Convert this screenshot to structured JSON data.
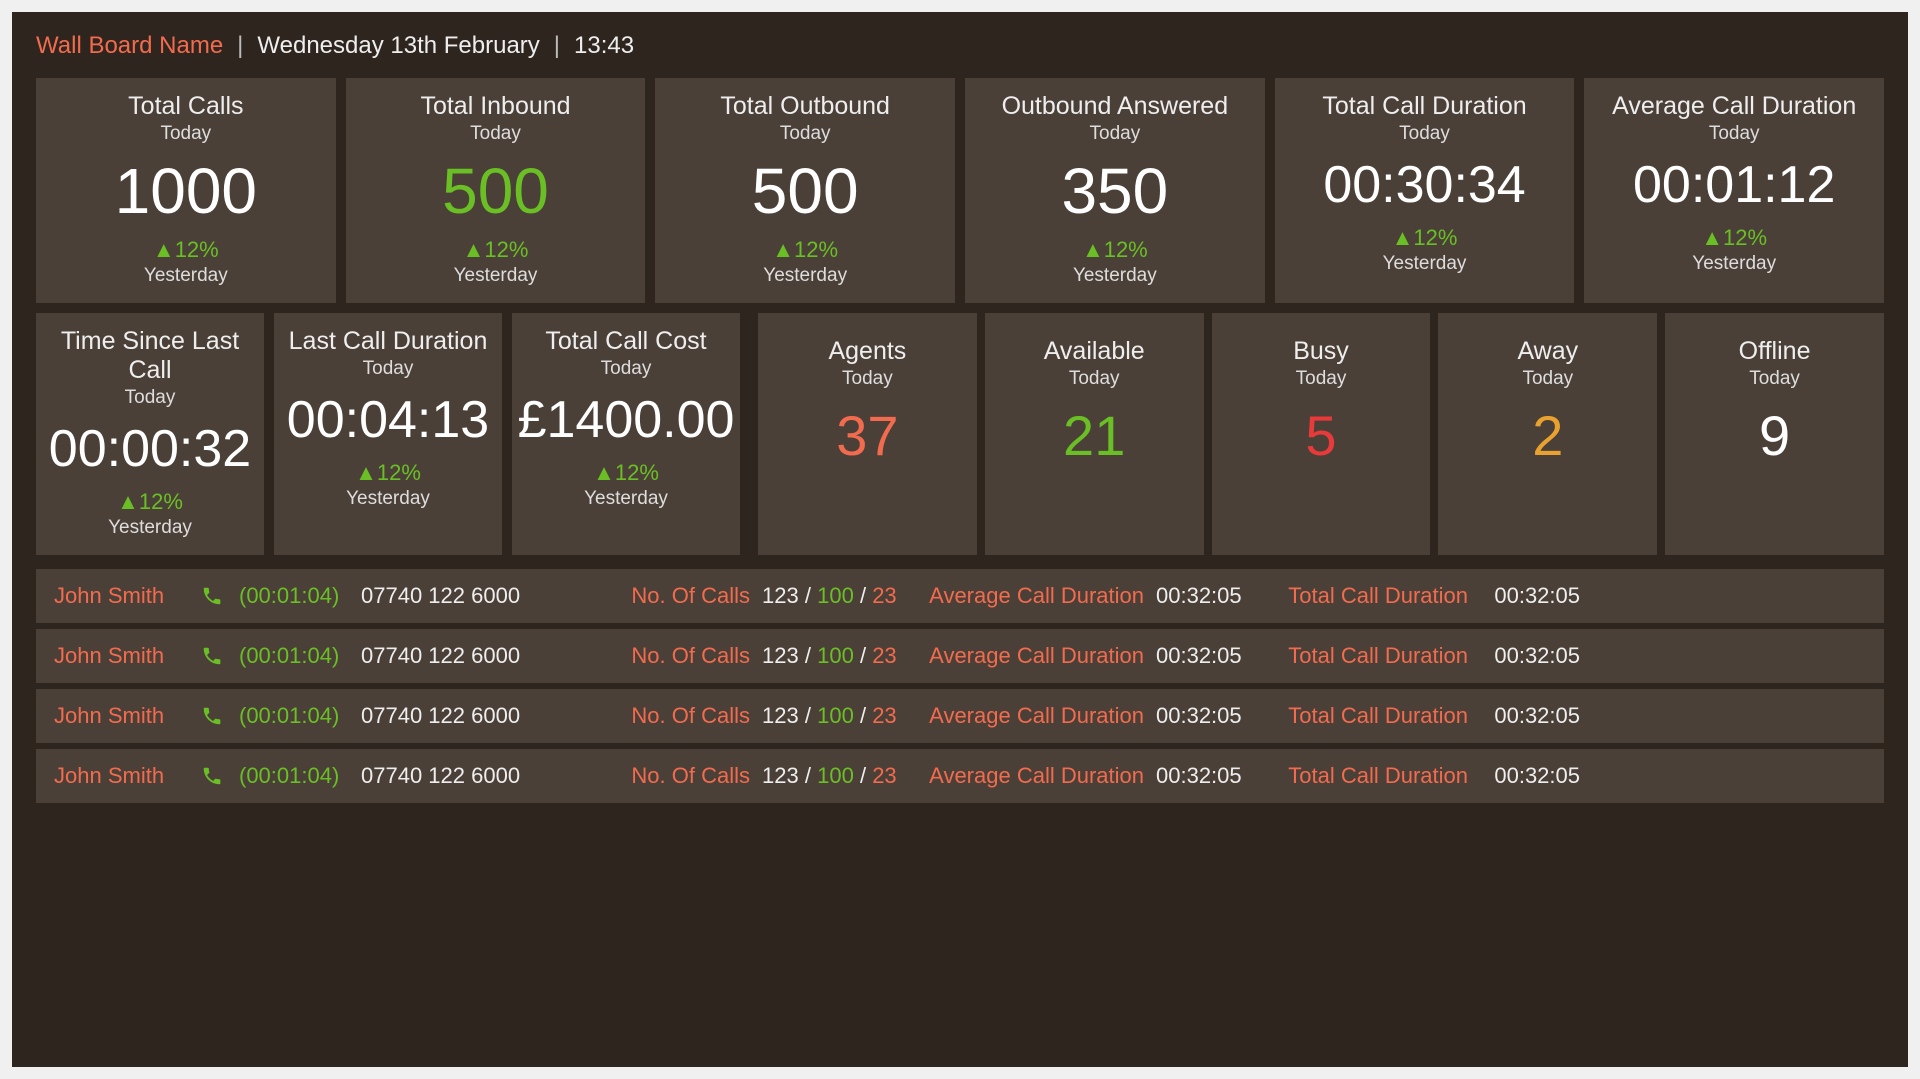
{
  "colors": {
    "background": "#2e251f",
    "card": "#4b4038",
    "text": "#eeeeee",
    "accent": "#f26b4e",
    "green": "#6abf25",
    "red": "#e83a3a",
    "orange": "#e9a22f",
    "white": "#ffffff"
  },
  "header": {
    "title": "Wall Board Name",
    "date": "Wednesday 13th February",
    "time": "13:43",
    "separator": "|"
  },
  "cards_row1": [
    {
      "title": "Total Calls",
      "sub": "Today",
      "value": "1000",
      "value_color": "white",
      "trend": "▲12%",
      "compare": "Yesterday"
    },
    {
      "title": "Total Inbound",
      "sub": "Today",
      "value": "500",
      "value_color": "green",
      "trend": "▲12%",
      "compare": "Yesterday"
    },
    {
      "title": "Total Outbound",
      "sub": "Today",
      "value": "500",
      "value_color": "white",
      "trend": "▲12%",
      "compare": "Yesterday"
    },
    {
      "title": "Outbound Answered",
      "sub": "Today",
      "value": "350",
      "value_color": "white",
      "trend": "▲12%",
      "compare": "Yesterday"
    },
    {
      "title": "Total Call Duration",
      "sub": "Today",
      "value": "00:30:34",
      "value_color": "white",
      "trend": "▲12%",
      "compare": "Yesterday"
    },
    {
      "title": "Average Call Duration",
      "sub": "Today",
      "value": "00:01:12",
      "value_color": "white",
      "trend": "▲12%",
      "compare": "Yesterday"
    }
  ],
  "cards_row2": [
    {
      "title": "Time Since Last Call",
      "sub": "Today",
      "value": "00:00:32",
      "value_color": "white",
      "trend": "▲12%",
      "compare": "Yesterday"
    },
    {
      "title": "Last Call Duration",
      "sub": "Today",
      "value": "00:04:13",
      "value_color": "white",
      "trend": "▲12%",
      "compare": "Yesterday"
    },
    {
      "title": "Total Call Cost",
      "sub": "Today",
      "value": "£1400.00",
      "value_color": "white",
      "trend": "▲12%",
      "compare": "Yesterday"
    }
  ],
  "agent_stats": [
    {
      "title": "Agents",
      "sub": "Today",
      "value": "37",
      "color": "#f26b4e"
    },
    {
      "title": "Available",
      "sub": "Today",
      "value": "21",
      "color": "#6abf25"
    },
    {
      "title": "Busy",
      "sub": "Today",
      "value": "5",
      "color": "#e83a3a"
    },
    {
      "title": "Away",
      "sub": "Today",
      "value": "2",
      "color": "#e9a22f"
    },
    {
      "title": "Offline",
      "sub": "Today",
      "value": "9",
      "color": "#ffffff"
    }
  ],
  "labels": {
    "num_calls": "No. Of Calls",
    "avg_duration": "Average Call Duration",
    "total_duration": "Total Call Duration"
  },
  "agent_rows": [
    {
      "name": "John Smith",
      "call_time": "(00:01:04)",
      "phone": "07740 122 6000",
      "calls_total": "123",
      "calls_g": "100",
      "calls_a": "23",
      "avg": "00:32:05",
      "total": "00:32:05"
    },
    {
      "name": "John Smith",
      "call_time": "(00:01:04)",
      "phone": "07740 122 6000",
      "calls_total": "123",
      "calls_g": "100",
      "calls_a": "23",
      "avg": "00:32:05",
      "total": "00:32:05"
    },
    {
      "name": "John Smith",
      "call_time": "(00:01:04)",
      "phone": "07740 122 6000",
      "calls_total": "123",
      "calls_g": "100",
      "calls_a": "23",
      "avg": "00:32:05",
      "total": "00:32:05"
    },
    {
      "name": "John Smith",
      "call_time": "(00:01:04)",
      "phone": "07740 122 6000",
      "calls_total": "123",
      "calls_g": "100",
      "calls_a": "23",
      "avg": "00:32:05",
      "total": "00:32:05"
    }
  ]
}
